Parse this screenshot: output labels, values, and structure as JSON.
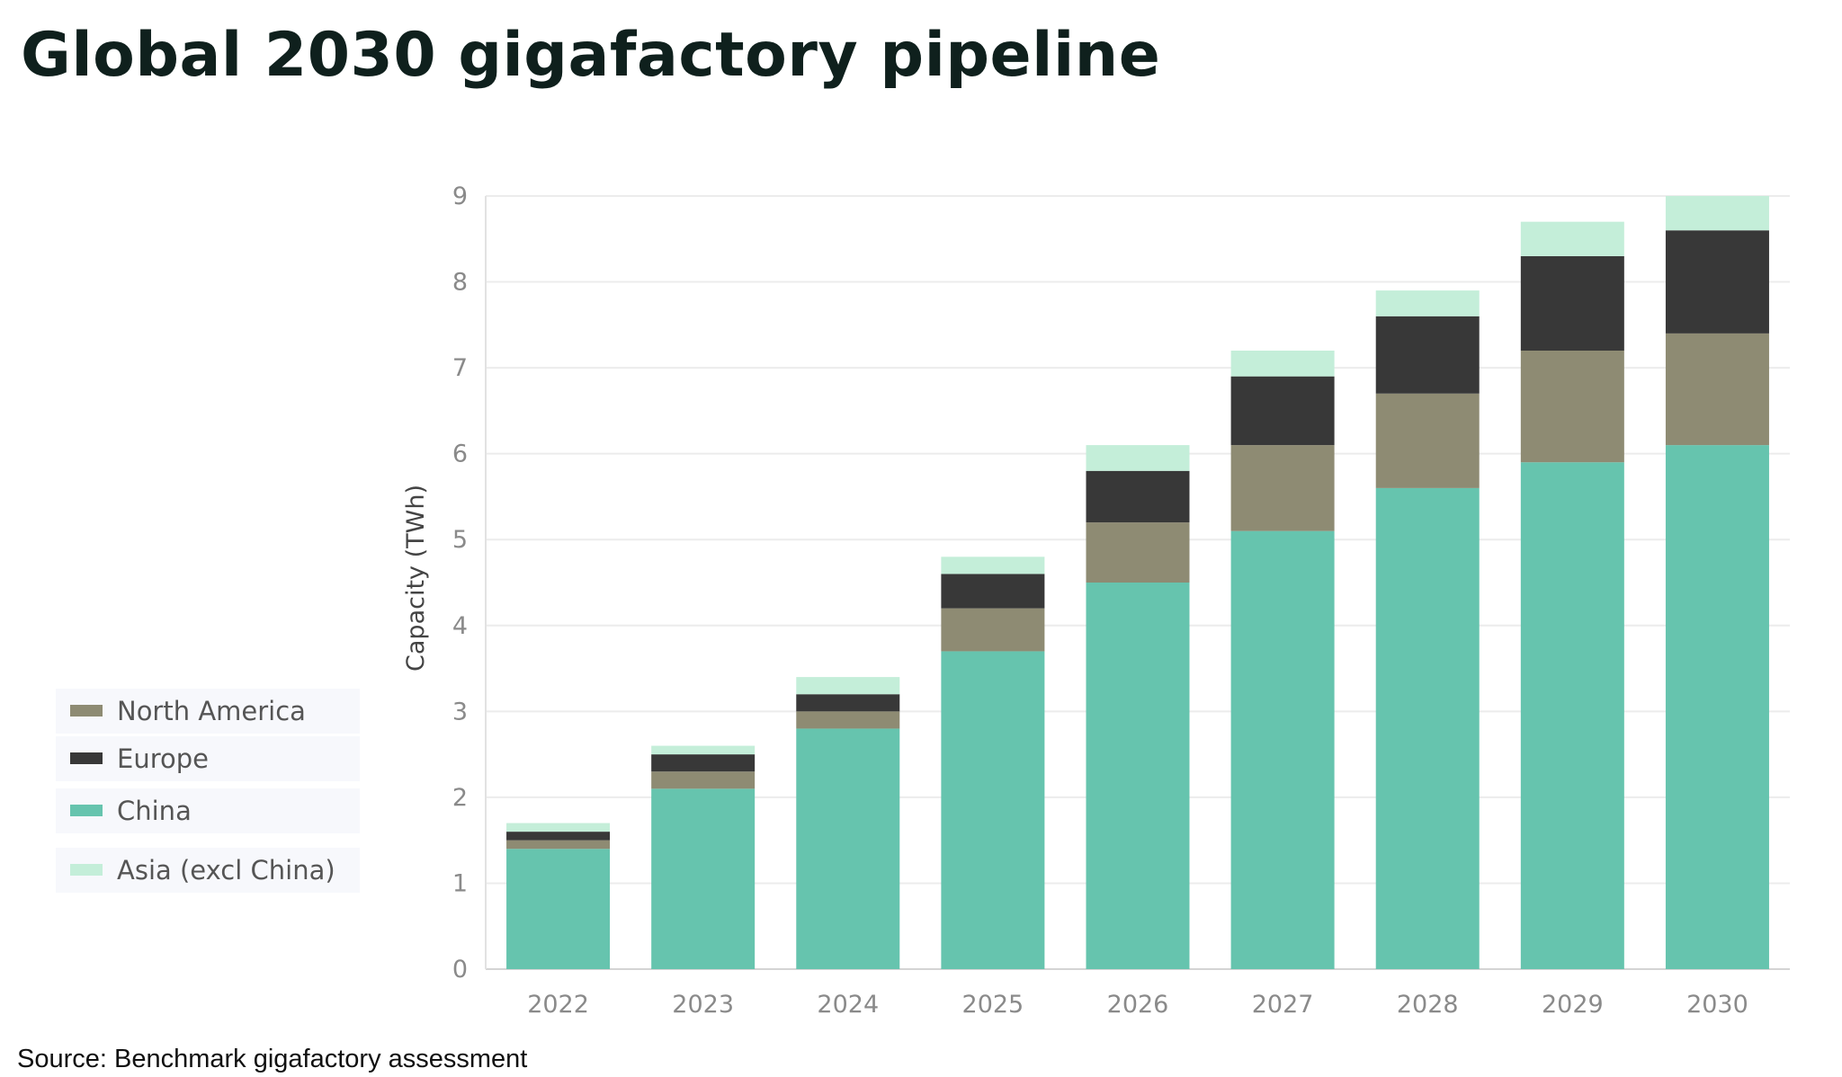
{
  "title": "Global 2030 gigafactory pipeline",
  "source": "Source: Benchmark gigafactory assessment",
  "chart_data": {
    "type": "bar",
    "stacked": true,
    "ylabel": "Capacity (TWh)",
    "xlabel": "",
    "ylim": [
      0,
      9
    ],
    "yticks": [
      0,
      1,
      2,
      3,
      4,
      5,
      6,
      7,
      8,
      9
    ],
    "grid": true,
    "legend_position": "bottom-left",
    "categories": [
      "2022",
      "2023",
      "2024",
      "2025",
      "2026",
      "2027",
      "2028",
      "2029",
      "2030"
    ],
    "series": [
      {
        "name": "China",
        "color": "#66c4ae",
        "values": [
          1.4,
          2.1,
          2.8,
          3.7,
          4.5,
          5.1,
          5.6,
          5.9,
          6.1
        ]
      },
      {
        "name": "North America",
        "color": "#8e8b73",
        "values": [
          0.1,
          0.2,
          0.2,
          0.5,
          0.7,
          1.0,
          1.1,
          1.3,
          1.3
        ]
      },
      {
        "name": "Europe",
        "color": "#383838",
        "values": [
          0.1,
          0.2,
          0.2,
          0.4,
          0.6,
          0.8,
          0.9,
          1.1,
          1.2
        ]
      },
      {
        "name": "Asia (excl China)",
        "color": "#c4eed9",
        "values": [
          0.1,
          0.1,
          0.2,
          0.2,
          0.3,
          0.3,
          0.3,
          0.4,
          0.4
        ]
      }
    ],
    "legend": [
      "North America",
      "Europe",
      "China",
      "Asia (excl China)"
    ]
  }
}
